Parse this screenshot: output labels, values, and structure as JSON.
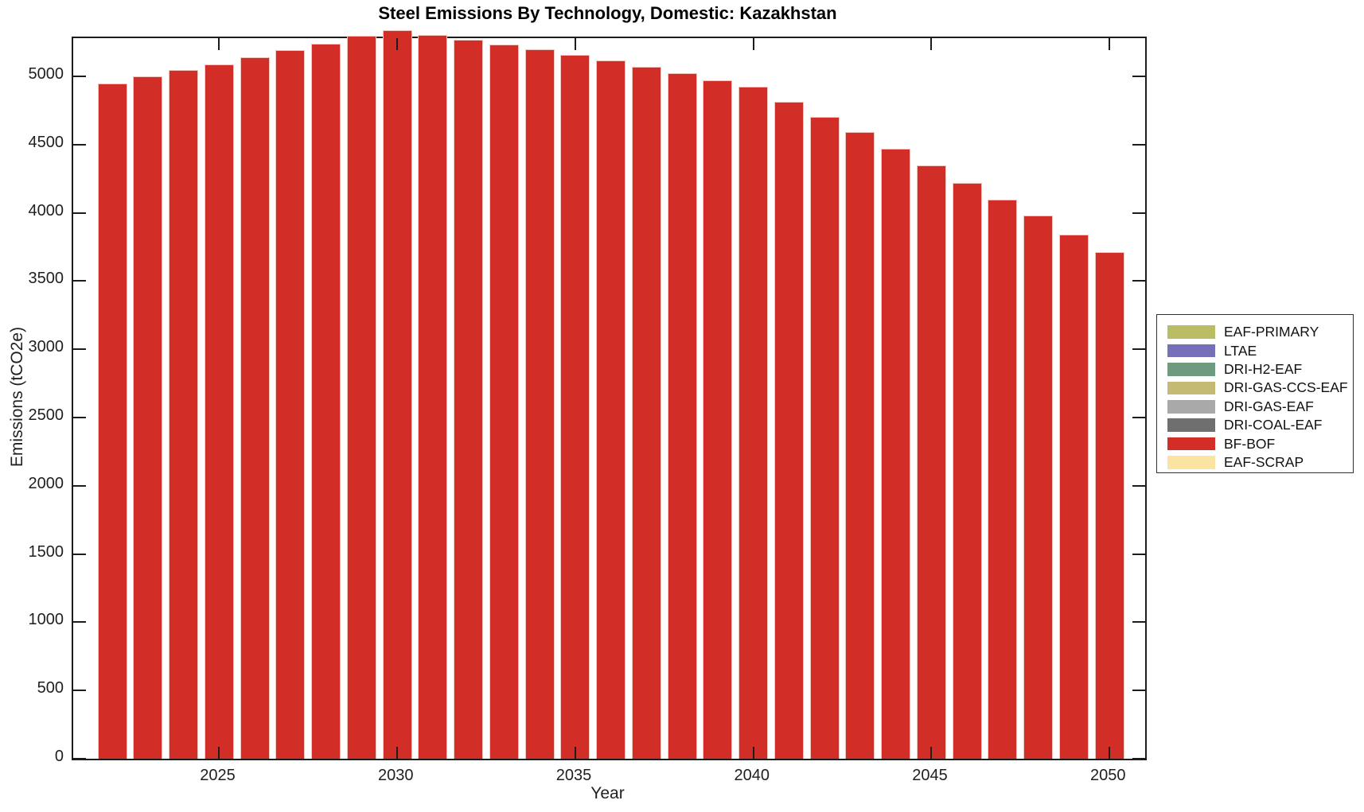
{
  "title": "Steel Emissions By Technology, Domestic: Kazakhstan",
  "chart_data": {
    "type": "bar",
    "title": "Steel Emissions By Technology, Domestic: Kazakhstan",
    "xlabel": "Year",
    "ylabel": "Emissions (tCO2e)",
    "grid": false,
    "legend_position": "right-outside",
    "xlim": [
      2020.9,
      2051.0
    ],
    "ylim": [
      0,
      5280
    ],
    "xticks": [
      2025,
      2030,
      2035,
      2040,
      2045,
      2050
    ],
    "yticks": [
      0,
      500,
      1000,
      1500,
      2000,
      2500,
      3000,
      3500,
      4000,
      4500,
      5000
    ],
    "x": [
      2022,
      2023,
      2024,
      2025,
      2026,
      2027,
      2028,
      2029,
      2030,
      2031,
      2032,
      2033,
      2034,
      2035,
      2036,
      2037,
      2038,
      2039,
      2040,
      2041,
      2042,
      2043,
      2044,
      2045,
      2046,
      2047,
      2048,
      2049,
      2050
    ],
    "series": [
      {
        "name": "BF-BOF",
        "color": "#D22E27",
        "edge_color": "#F2C6BE",
        "values": [
          4950,
          5000,
          5045,
          5090,
          5140,
          5190,
          5240,
          5295,
          5340,
          5305,
          5270,
          5235,
          5200,
          5160,
          5115,
          5070,
          5025,
          4970,
          4925,
          4815,
          4705,
          4590,
          4470,
          4345,
          4220,
          4095,
          3980,
          3840,
          3715
        ]
      }
    ],
    "legend": [
      {
        "label": "EAF-PRIMARY",
        "color": "#B9BD64"
      },
      {
        "label": "LTAE",
        "color": "#7670B8"
      },
      {
        "label": "DRI-H2-EAF",
        "color": "#6E9A80"
      },
      {
        "label": "DRI-GAS-CCS-EAF",
        "color": "#C4BA74"
      },
      {
        "label": "DRI-GAS-EAF",
        "color": "#A9A9A9"
      },
      {
        "label": "DRI-COAL-EAF",
        "color": "#6F6F6F"
      },
      {
        "label": "BF-BOF",
        "color": "#D22E27"
      },
      {
        "label": "EAF-SCRAP",
        "color": "#FBE3A2"
      }
    ]
  }
}
